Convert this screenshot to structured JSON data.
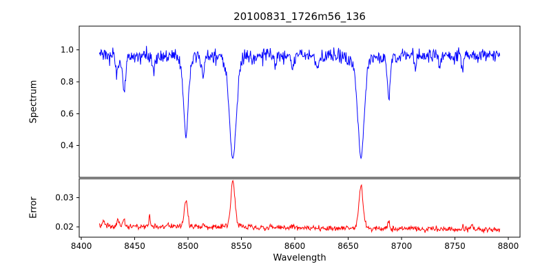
{
  "figure": {
    "title": "20100831_1726m56_136",
    "xlabel": "Wavelength",
    "background_color": "#ffffff"
  },
  "chart_data": [
    {
      "type": "line",
      "series_name": "spectrum",
      "title": "20100831_1726m56_136",
      "ylabel": "Spectrum",
      "line_color": "#0000ff",
      "xlim": [
        8398,
        8811
      ],
      "ylim": [
        0.2,
        1.15
      ],
      "yticks": [
        0.4,
        0.6,
        0.8,
        1.0
      ],
      "ytick_labels": [
        "0.4",
        "0.6",
        "0.8",
        "1.0"
      ],
      "x_range": [
        8417,
        8792
      ],
      "sample_step": 0.5,
      "baseline": 0.965,
      "baseline_slope": 0,
      "noise_std": 0.022,
      "seed": 20100831,
      "grid": false,
      "legend": "none",
      "note": "Noisy stellar spectrum, continuum ~0.96; deep Ca II triplet absorption lines at 8498, 8542, 8662 plus weaker features",
      "absorption_lines": [
        {
          "center": 8433,
          "depth": 0.12,
          "sigma": 1.2
        },
        {
          "center": 8440,
          "depth": 0.22,
          "sigma": 1.5
        },
        {
          "center": 8468,
          "depth": 0.1,
          "sigma": 1.1
        },
        {
          "center": 8498,
          "depth": 0.5,
          "sigma": 2.3
        },
        {
          "center": 8514,
          "depth": 0.12,
          "sigma": 1.3
        },
        {
          "center": 8542,
          "depth": 0.65,
          "sigma": 3.3
        },
        {
          "center": 8582,
          "depth": 0.08,
          "sigma": 1.1
        },
        {
          "center": 8598,
          "depth": 0.09,
          "sigma": 1.1
        },
        {
          "center": 8621,
          "depth": 0.1,
          "sigma": 1.2
        },
        {
          "center": 8662,
          "depth": 0.64,
          "sigma": 3.1
        },
        {
          "center": 8688,
          "depth": 0.26,
          "sigma": 1.4
        },
        {
          "center": 8713,
          "depth": 0.07,
          "sigma": 1.0
        },
        {
          "center": 8736,
          "depth": 0.08,
          "sigma": 1.0
        },
        {
          "center": 8757,
          "depth": 0.07,
          "sigma": 1.0
        }
      ]
    },
    {
      "type": "line",
      "series_name": "error",
      "ylabel": "Error",
      "xlabel": "Wavelength",
      "line_color": "#ff0000",
      "xlim": [
        8398,
        8811
      ],
      "ylim": [
        0.0165,
        0.0365
      ],
      "yticks": [
        0.02,
        0.03
      ],
      "ytick_labels": [
        "0.02",
        "0.03"
      ],
      "xticks": [
        8400,
        8450,
        8500,
        8550,
        8600,
        8650,
        8700,
        8750,
        8800
      ],
      "xtick_labels": [
        "8400",
        "8450",
        "8500",
        "8550",
        "8600",
        "8650",
        "8700",
        "8750",
        "8800"
      ],
      "x_range": [
        8417,
        8792
      ],
      "sample_step": 0.5,
      "baseline": 0.0197,
      "baseline_slope": -3.5e-06,
      "noise_std": 0.00045,
      "seed": 1726,
      "grid": false,
      "legend": "none",
      "note": "Error spectrum ~0.02 baseline with peaks at the absorption-line wavelengths",
      "peaks": [
        {
          "center": 8421,
          "height": 0.0015,
          "sigma": 0.8
        },
        {
          "center": 8434,
          "height": 0.0025,
          "sigma": 0.9
        },
        {
          "center": 8440,
          "height": 0.0022,
          "sigma": 0.9
        },
        {
          "center": 8464,
          "height": 0.0045,
          "sigma": 0.6
        },
        {
          "center": 8498,
          "height": 0.0092,
          "sigma": 1.6
        },
        {
          "center": 8514,
          "height": 0.0012,
          "sigma": 0.8
        },
        {
          "center": 8542,
          "height": 0.016,
          "sigma": 2.0
        },
        {
          "center": 8598,
          "height": 0.001,
          "sigma": 0.8
        },
        {
          "center": 8662,
          "height": 0.015,
          "sigma": 1.9
        },
        {
          "center": 8688,
          "height": 0.0028,
          "sigma": 0.9
        },
        {
          "center": 8757,
          "height": 0.0012,
          "sigma": 0.8
        },
        {
          "center": 8766,
          "height": 0.0018,
          "sigma": 1.5
        }
      ]
    }
  ]
}
